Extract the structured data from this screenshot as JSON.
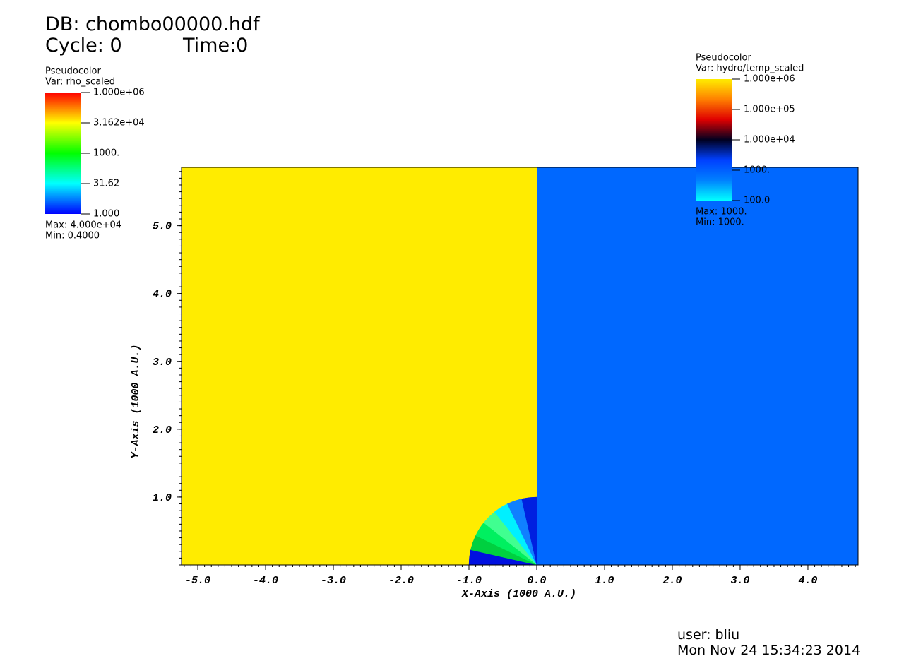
{
  "header": {
    "db": "DB: chombo00000.hdf",
    "cycle": "Cycle: 0",
    "time": "Time:0"
  },
  "chart_data": {
    "type": "pseudocolor",
    "xlabel": "X-Axis (1000 A.U.)",
    "ylabel": "Y-Axis (1000 A.U.)",
    "xlim": [
      -5.24,
      4.74
    ],
    "ylim": [
      0,
      5.86
    ],
    "xticks": [
      {
        "value": -5,
        "label": "-5.0"
      },
      {
        "value": -4,
        "label": "-4.0"
      },
      {
        "value": -3,
        "label": "-3.0"
      },
      {
        "value": -2,
        "label": "-2.0"
      },
      {
        "value": -1,
        "label": "-1.0"
      },
      {
        "value": 0,
        "label": "0.0"
      },
      {
        "value": 1,
        "label": "1.0"
      },
      {
        "value": 2,
        "label": "2.0"
      },
      {
        "value": 3,
        "label": "3.0"
      },
      {
        "value": 4,
        "label": "4.0"
      }
    ],
    "yticks": [
      {
        "value": 1,
        "label": "1.0"
      },
      {
        "value": 2,
        "label": "2.0"
      },
      {
        "value": 3,
        "label": "3.0"
      },
      {
        "value": 4,
        "label": "4.0"
      },
      {
        "value": 5,
        "label": "5.0"
      }
    ],
    "left_color": "#ffec00",
    "right_color": "#0068ff",
    "core_colors": [
      "#0010e0",
      "#00d040",
      "#00f060",
      "#40ff90",
      "#00f0ff",
      "#1080ff",
      "#0020e0"
    ]
  },
  "legends": [
    {
      "title": "Pseudocolor",
      "var": "Var: rho_scaled",
      "labels": [
        "1.000e+06",
        "3.162e+04",
        "1000.",
        "31.62",
        "1.000"
      ],
      "max": "Max:  4.000e+04",
      "min": "Min:  0.4000",
      "colors": [
        "#ff0000",
        "#ffff00",
        "#00ff00",
        "#00ffff",
        "#0000ff"
      ]
    },
    {
      "title": "Pseudocolor",
      "var": "Var: hydro/temp_scaled",
      "labels": [
        "1.000e+06",
        "1.000e+05",
        "1.000e+04",
        "1000.",
        "100.0"
      ],
      "max": "Max:  1000.",
      "min": "Min:  1000.",
      "colors": [
        "#ffee00",
        "#ff8000",
        "#e00000",
        "#000020",
        "#0040ff",
        "#0080ff",
        "#00ffff"
      ]
    }
  ],
  "footer": {
    "user": "user: bliu",
    "date": "Mon Nov 24 15:34:23 2014"
  }
}
